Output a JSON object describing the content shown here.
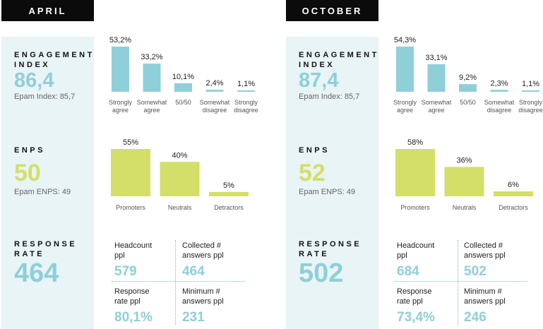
{
  "colors": {
    "engagement_bar": "#8fcfd9",
    "enps_bar": "#d3df69",
    "engagement_value": "#8fcfd9",
    "enps_value": "#d3df69",
    "metrics_bg": "#e8f4f6",
    "header_bg": "#0b0b0b"
  },
  "panels": [
    {
      "period": "APRIL",
      "engagement": {
        "label": "ENGAGEMENT\nINDEX",
        "value": "86,4",
        "benchmark": "Epam Index: 85,7"
      },
      "enps": {
        "label": "ENPS",
        "value": "50",
        "benchmark": "Epam ENPS: 49"
      },
      "response": {
        "label": "RESPONSE\nRATE",
        "value": "464",
        "cells": [
          {
            "caption": "Headcount\nppl",
            "value": "579"
          },
          {
            "caption": "Collected #\nanswers ppl",
            "value": "464"
          },
          {
            "caption": "Response\nrate ppl",
            "value": "80,1%"
          },
          {
            "caption": "Minimum #\nanswers ppl",
            "value": "231"
          }
        ]
      }
    },
    {
      "period": "OCTOBER",
      "engagement": {
        "label": "ENGAGEMENT\nINDEX",
        "value": "87,4",
        "benchmark": "Epam Index: 85,7"
      },
      "enps": {
        "label": "ENPS",
        "value": "52",
        "benchmark": "Epam ENPS: 49"
      },
      "response": {
        "label": "RESPONSE\nRATE",
        "value": "502",
        "cells": [
          {
            "caption": "Headcount\nppl",
            "value": "684"
          },
          {
            "caption": "Collected #\nanswers ppl",
            "value": "502"
          },
          {
            "caption": "Response\nrate ppl",
            "value": "73,4%"
          },
          {
            "caption": "Minimum #\nanswers ppl",
            "value": "246"
          }
        ]
      }
    }
  ],
  "chart_data": [
    {
      "type": "bar",
      "panel": "APRIL",
      "metric": "engagement",
      "categories": [
        "Strongly\nagree",
        "Somewhat\nagree",
        "50/50",
        "Somewhat\ndisagree",
        "Strongly\ndisagree"
      ],
      "values": [
        53.2,
        33.2,
        10.1,
        2.4,
        1.1
      ],
      "labels": [
        "53,2%",
        "33,2%",
        "10,1%",
        "2,4%",
        "1,1%"
      ]
    },
    {
      "type": "bar",
      "panel": "APRIL",
      "metric": "enps",
      "categories": [
        "Promoters",
        "Neutrals",
        "Detractors"
      ],
      "values": [
        55,
        40,
        5
      ],
      "labels": [
        "55%",
        "40%",
        "5%"
      ]
    },
    {
      "type": "bar",
      "panel": "OCTOBER",
      "metric": "engagement",
      "categories": [
        "Strongly\nagree",
        "Somewhat\nagree",
        "50/50",
        "Somewhat\ndisagree",
        "Strongly\ndisagree"
      ],
      "values": [
        54.3,
        33.1,
        9.2,
        2.3,
        1.1
      ],
      "labels": [
        "54,3%",
        "33,1%",
        "9,2%",
        "2,3%",
        "1,1%"
      ]
    },
    {
      "type": "bar",
      "panel": "OCTOBER",
      "metric": "enps",
      "categories": [
        "Promoters",
        "Neutrals",
        "Detractors"
      ],
      "values": [
        58,
        36,
        6
      ],
      "labels": [
        "58%",
        "36%",
        "6%"
      ]
    }
  ]
}
